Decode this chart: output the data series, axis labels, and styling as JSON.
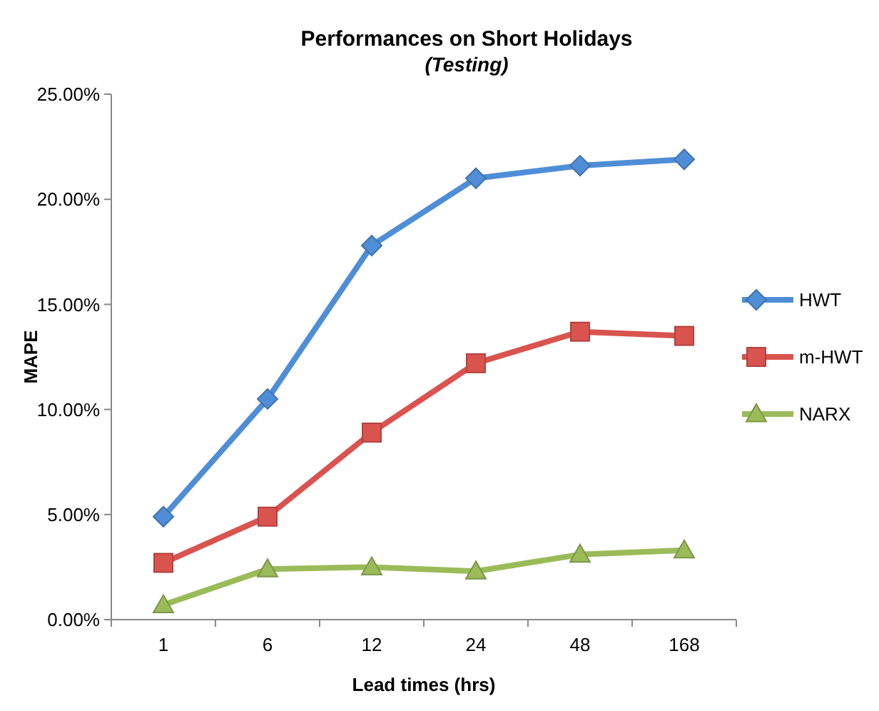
{
  "chart_data": {
    "type": "line",
    "title": "Performances on Short Holidays",
    "subtitle": "(Testing)",
    "xlabel": "Lead times (hrs)",
    "ylabel": "MAPE",
    "categories": [
      "1",
      "6",
      "12",
      "24",
      "48",
      "168"
    ],
    "series": [
      {
        "name": "HWT",
        "color": "#4f8ed6",
        "marker": "diamond",
        "values": [
          4.9,
          10.5,
          17.8,
          21.0,
          21.6,
          21.9
        ]
      },
      {
        "name": "m-HWT",
        "color": "#d9534f",
        "marker": "square",
        "values": [
          2.7,
          4.9,
          8.9,
          12.2,
          13.7,
          13.5
        ]
      },
      {
        "name": "NARX",
        "color": "#9bbb59",
        "marker": "triangle",
        "values": [
          0.7,
          2.4,
          2.5,
          2.3,
          3.1,
          3.3
        ]
      }
    ],
    "ylim": [
      0,
      25
    ],
    "yticks": [
      {
        "value": 0,
        "label": "0.00%"
      },
      {
        "value": 5,
        "label": "5.00%"
      },
      {
        "value": 10,
        "label": "10.00%"
      },
      {
        "value": 15,
        "label": "15.00%"
      },
      {
        "value": 20,
        "label": "20.00%"
      },
      {
        "value": 25,
        "label": "25.00%"
      }
    ],
    "grid": false,
    "legend": "right",
    "line_style": "solid"
  }
}
